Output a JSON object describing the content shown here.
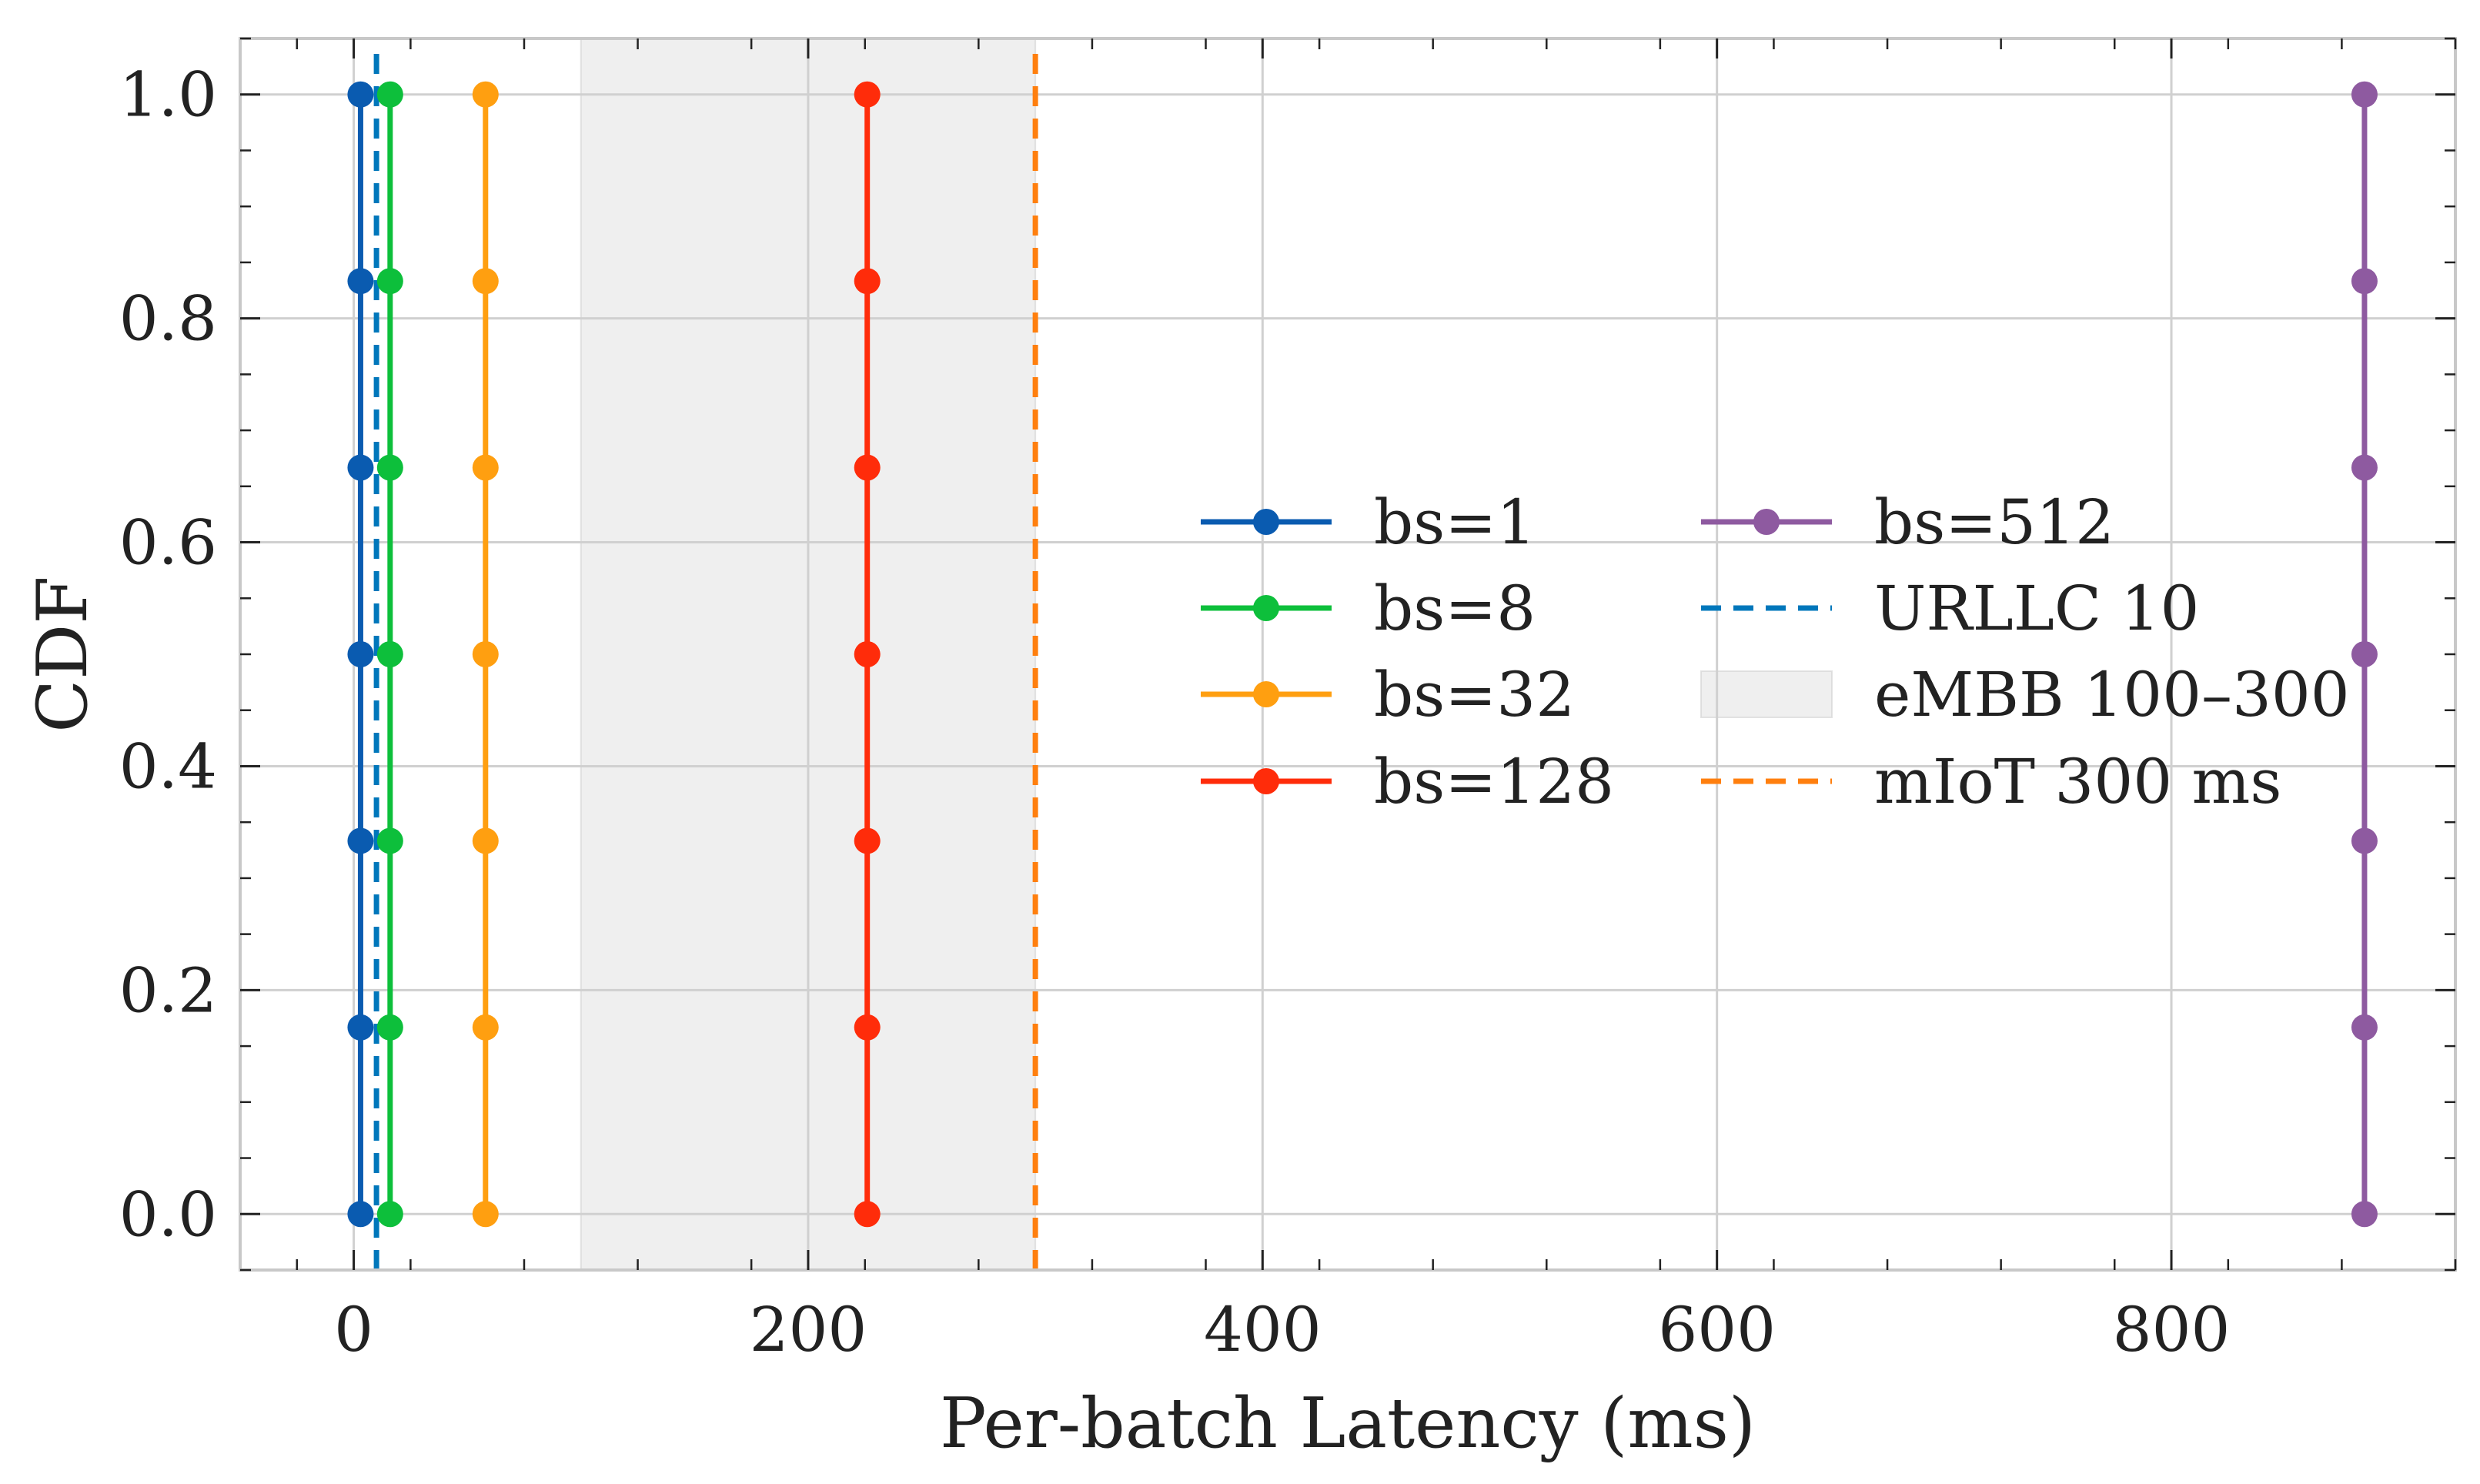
{
  "chart_data": {
    "type": "line",
    "title": "",
    "xlabel": "Per-batch Latency (ms)",
    "ylabel": "CDF",
    "xlim": [
      -50,
      925
    ],
    "ylim": [
      -0.05,
      1.05
    ],
    "xticks": [
      0,
      200,
      400,
      600,
      800
    ],
    "xtick_labels": [
      "0",
      "200",
      "400",
      "600",
      "800"
    ],
    "yticks": [
      0.0,
      0.2,
      0.4,
      0.6,
      0.8,
      1.0
    ],
    "ytick_labels": [
      "0.0",
      "0.2",
      "0.4",
      "0.6",
      "0.8",
      "1.0"
    ],
    "grid": true,
    "legend_position": "center-right",
    "series": [
      {
        "name": "bs=1",
        "color": "#0a5bb0",
        "x": [
          3,
          3,
          3,
          3,
          3,
          3,
          3
        ],
        "y": [
          0.0,
          0.1667,
          0.3333,
          0.5,
          0.6667,
          0.8333,
          1.0
        ]
      },
      {
        "name": "bs=8",
        "color": "#0dbf3b",
        "x": [
          16,
          16,
          16,
          16,
          16,
          16,
          16
        ],
        "y": [
          0.0,
          0.1667,
          0.3333,
          0.5,
          0.6667,
          0.8333,
          1.0
        ]
      },
      {
        "name": "bs=32",
        "color": "#ff9f10",
        "x": [
          58,
          58,
          58,
          58,
          58,
          58,
          58
        ],
        "y": [
          0.0,
          0.1667,
          0.3333,
          0.5,
          0.6667,
          0.8333,
          1.0
        ]
      },
      {
        "name": "bs=128",
        "color": "#ff2c0a",
        "x": [
          226,
          226,
          226,
          226,
          226,
          226,
          226
        ],
        "y": [
          0.0,
          0.1667,
          0.3333,
          0.5,
          0.6667,
          0.8333,
          1.0
        ]
      },
      {
        "name": "bs=512",
        "color": "#8e5aa0",
        "x": [
          885,
          885,
          885,
          885,
          885,
          885,
          885
        ],
        "y": [
          0.0,
          0.1667,
          0.3333,
          0.5,
          0.6667,
          0.8333,
          1.0
        ]
      }
    ],
    "reference_lines": [
      {
        "name": "URLLC 10",
        "x": 10,
        "color": "#0077bb",
        "style": "dashed"
      },
      {
        "name": "mIoT 300 ms",
        "x": 300,
        "color": "#ff7f0e",
        "style": "dashed"
      }
    ],
    "shaded_regions": [
      {
        "name": "eMBB 100–300",
        "x_start": 100,
        "x_end": 300,
        "color": "#d0d0d0"
      }
    ]
  }
}
